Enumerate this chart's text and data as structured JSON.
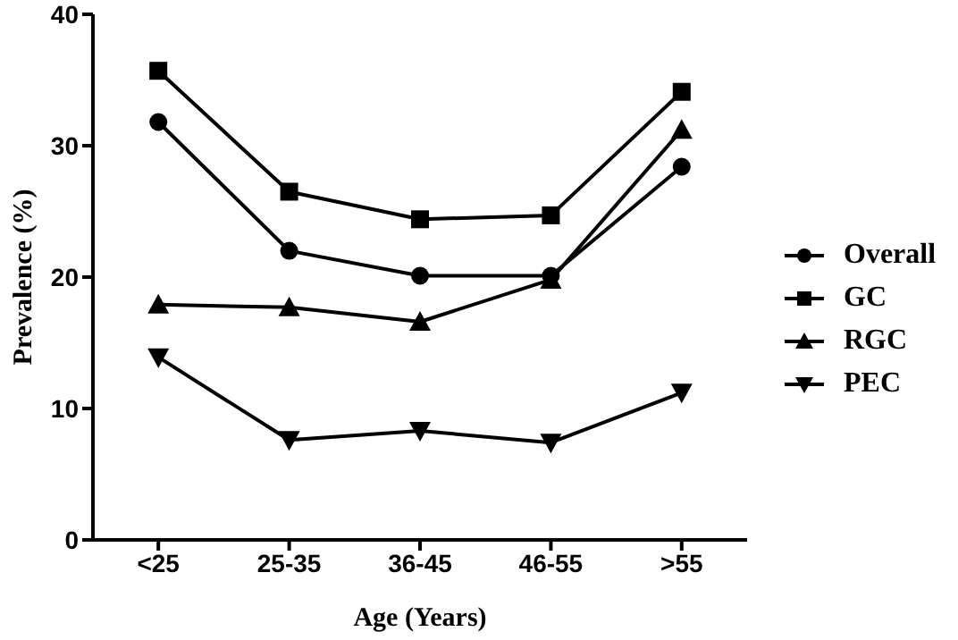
{
  "chart_data": {
    "type": "line",
    "xlabel": "Age (Years)",
    "ylabel": "Prevalence (%)",
    "categories": [
      "<25",
      "25-35",
      "36-45",
      "46-55",
      ">55"
    ],
    "series": [
      {
        "name": "Overall",
        "color": "#000000",
        "marker": "circle",
        "values": [
          31.8,
          22.0,
          20.1,
          20.1,
          28.4
        ]
      },
      {
        "name": "GC",
        "color": "#000000",
        "marker": "square",
        "values": [
          35.7,
          26.5,
          24.4,
          24.7,
          34.1
        ]
      },
      {
        "name": "RGC",
        "color": "#000000",
        "marker": "triangle",
        "values": [
          17.9,
          17.7,
          16.6,
          19.8,
          31.2
        ]
      },
      {
        "name": "PEC",
        "color": "#000000",
        "marker": "triangle-down",
        "values": [
          13.9,
          7.6,
          8.3,
          7.4,
          11.2
        ]
      }
    ],
    "ylim": [
      0,
      40
    ],
    "yticks": [
      0,
      10,
      20,
      30,
      40
    ],
    "grid": false,
    "legend": "right",
    "line_style": "solid"
  }
}
